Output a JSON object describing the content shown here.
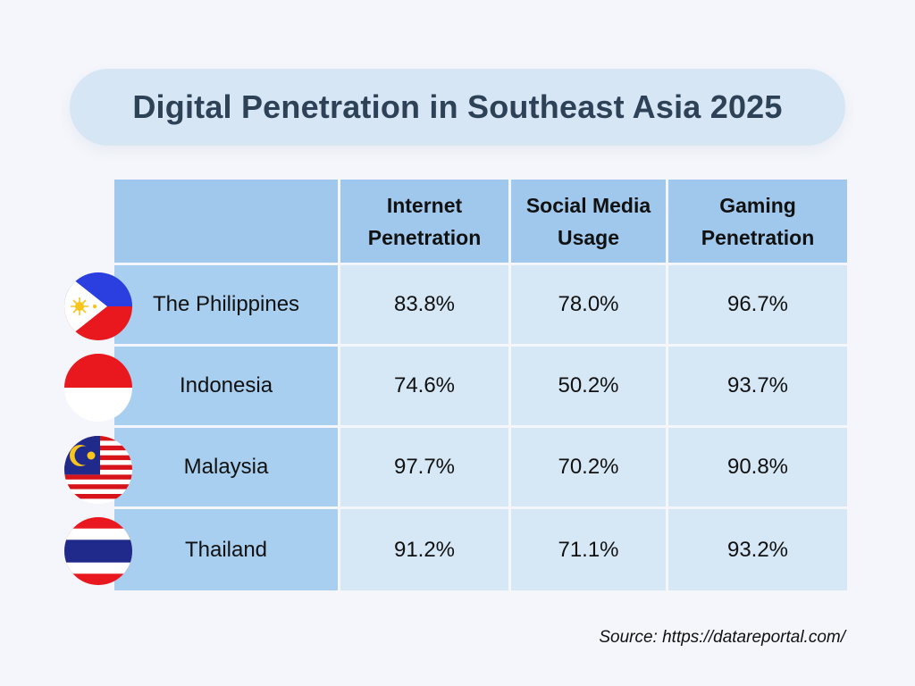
{
  "chart_data": {
    "type": "table",
    "title": "Digital Penetration in Southeast Asia 2025",
    "columns": [
      "",
      "Internet Penetration",
      "Social Media Usage",
      "Gaming Penetration"
    ],
    "rows": [
      {
        "country": "The Philippines",
        "values": [
          "83.8%",
          "78.0%",
          "96.7%"
        ],
        "flag": "philippines-flag"
      },
      {
        "country": "Indonesia",
        "values": [
          "74.6%",
          "50.2%",
          "93.7%"
        ],
        "flag": "indonesia-flag"
      },
      {
        "country": "Malaysia",
        "values": [
          "97.7%",
          "70.2%",
          "90.8%"
        ],
        "flag": "malaysia-flag"
      },
      {
        "country": "Thailand",
        "values": [
          "91.2%",
          "71.1%",
          "93.2%"
        ],
        "flag": "thailand-flag"
      }
    ],
    "source": "Source: https://datareportal.com/"
  },
  "colors": {
    "title_banner": "#d6e6f4",
    "title_text": "#2d4257",
    "header_bg": "#a0c8ec",
    "name_bg": "#a8cfef",
    "value_bg": "#d6e7f5"
  }
}
